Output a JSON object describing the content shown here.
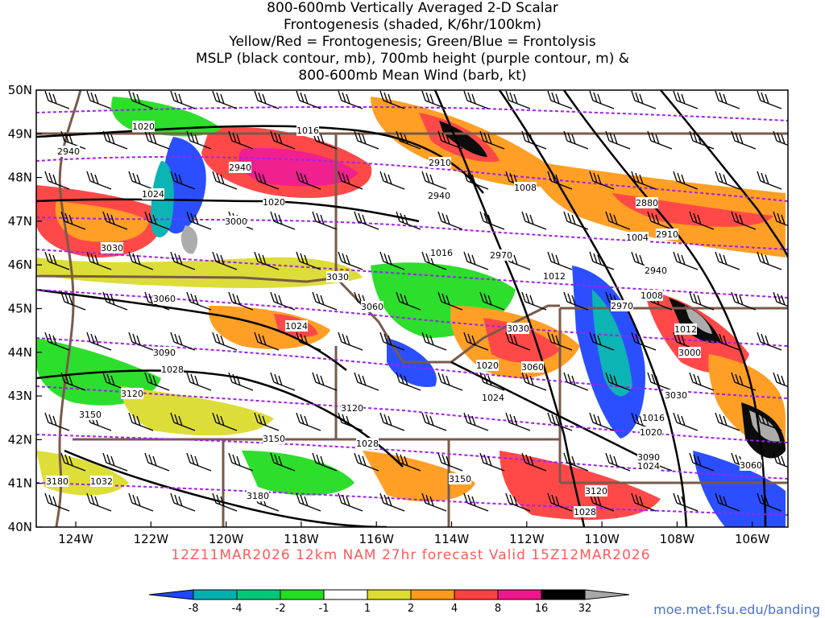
{
  "title": {
    "lines": [
      "800-600mb Vertically Averaged 2-D Scalar",
      "Frontogenesis (shaded, K/6hr/100km)",
      "Yellow/Red = Frontogenesis;  Green/Blue = Frontolysis",
      "MSLP (black contour, mb), 700mb height (purple contour, m) &",
      "800-600mb Mean Wind (barb, kt)"
    ]
  },
  "axes": {
    "lat_labels": [
      "50N",
      "49N",
      "48N",
      "47N",
      "46N",
      "45N",
      "44N",
      "43N",
      "42N",
      "41N",
      "40N"
    ],
    "lon_labels": [
      "124W",
      "122W",
      "120W",
      "118W",
      "116W",
      "114W",
      "112W",
      "110W",
      "108W",
      "106W"
    ]
  },
  "valid_text": "12Z11MAR2026 12km NAM 27hr forecast Valid 15Z12MAR2026",
  "credit": "moe.met.fsu.edu/banding",
  "legend": {
    "labels": [
      "-8",
      "-4",
      "-2",
      "-1",
      "1",
      "2",
      "4",
      "8",
      "16",
      "32"
    ],
    "colors": [
      "#2046ff",
      "#00b0b0",
      "#00c878",
      "#22dd22",
      "#ffffff",
      "#dcdc30",
      "#ff9a1a",
      "#ff4040",
      "#f0158a",
      "#000000",
      "#a8a8a8"
    ]
  },
  "contours": {
    "mslp_labels": [
      "1020",
      "1016",
      "1024",
      "1020",
      "1016",
      "1008",
      "1004",
      "1012",
      "1008",
      "1012",
      "1024",
      "1028",
      "1020",
      "1028",
      "1024",
      "1016",
      "1020",
      "1032",
      "1028",
      "1024"
    ],
    "height_labels": [
      "2940",
      "2940",
      "2910",
      "2940",
      "2880",
      "2910",
      "2970",
      "2940",
      "3000",
      "3030",
      "3030",
      "3060",
      "3060",
      "3030",
      "2970",
      "3090",
      "3060",
      "3000",
      "3120",
      "3120",
      "3030",
      "3150",
      "3150",
      "3090",
      "3150",
      "3180",
      "3180",
      "3120",
      "3060"
    ]
  },
  "colors": {
    "mslp": "#000000",
    "height": "#a020f0",
    "border": "#7a5a4a",
    "frame": "#000000"
  }
}
